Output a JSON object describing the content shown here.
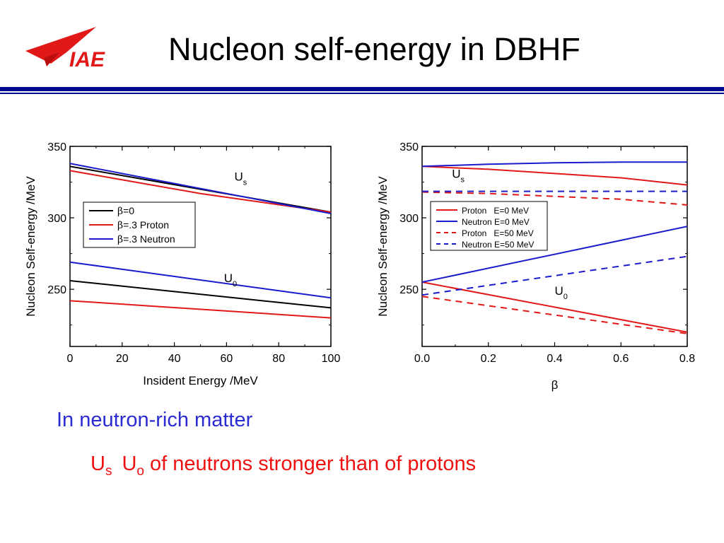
{
  "slide": {
    "title": "Nucleon self-energy in DBHF",
    "logo_text": "IAE",
    "note_heading": "In neutron-rich matter",
    "note_u": "U",
    "note_u_sub": "s",
    "note_uo": "U",
    "note_uo_sub": "o",
    "note_rest": " of  neutrons stronger than of protons",
    "colors": {
      "title_rule": "#000a8c",
      "heading": "#2b2bd0",
      "emphasis": "#ee1111",
      "logo": "#e11818"
    }
  },
  "chart_data": [
    {
      "type": "line",
      "xlabel": "Insident Energy /MeV",
      "ylabel": "Nucleon Self-energy /MeV",
      "xlim": [
        0,
        100
      ],
      "ylim": [
        210,
        350
      ],
      "xticks": [
        "0",
        "20",
        "40",
        "60",
        "80",
        "100"
      ],
      "yticks": [
        "250",
        "300",
        "350"
      ],
      "legend": {
        "placement": "middle-left",
        "entries": [
          "β=0",
          "β=.3 Proton",
          "β=.3 Neutron"
        ]
      },
      "annotations": [
        {
          "text": "U",
          "sub": "s",
          "x": 63,
          "y": 326
        },
        {
          "text": "U",
          "sub": "0",
          "x": 59,
          "y": 255
        }
      ],
      "series": [
        {
          "name": "β=0",
          "color": "#000000",
          "group": "Us",
          "x": [
            0,
            100
          ],
          "values": [
            336,
            304
          ]
        },
        {
          "name": "β=.3 Proton",
          "color": "#e11818",
          "group": "Us",
          "x": [
            0,
            50,
            100
          ],
          "values": [
            333,
            317,
            304
          ]
        },
        {
          "name": "β=.3 Neutron",
          "color": "#1b1bcc",
          "group": "Us",
          "x": [
            0,
            100
          ],
          "values": [
            338,
            303
          ]
        },
        {
          "name": "β=0",
          "color": "#000000",
          "group": "U0",
          "x": [
            0,
            100
          ],
          "values": [
            256,
            237
          ]
        },
        {
          "name": "β=.3 Proton",
          "color": "#e11818",
          "group": "U0",
          "x": [
            0,
            100
          ],
          "values": [
            242,
            230
          ]
        },
        {
          "name": "β=.3 Neutron",
          "color": "#1b1bcc",
          "group": "U0",
          "x": [
            0,
            100
          ],
          "values": [
            269,
            244
          ]
        }
      ]
    },
    {
      "type": "line",
      "xlabel": "β",
      "ylabel": "Nucleon Self-energy /MeV",
      "xlim": [
        0,
        0.8
      ],
      "ylim": [
        210,
        350
      ],
      "xticks": [
        "0.0",
        "0.2",
        "0.4",
        "0.6",
        "0.8"
      ],
      "yticks": [
        "250",
        "300",
        "350"
      ],
      "legend": {
        "placement": "middle-left",
        "entries": [
          "Proton   E=0 MeV",
          "Neutron E=0 MeV",
          "Proton   E=50 MeV",
          "Neutron E=50 MeV"
        ]
      },
      "annotations": [
        {
          "text": "U",
          "sub": "s",
          "x": 0.09,
          "y": 328
        },
        {
          "text": "U",
          "sub": "0",
          "x": 0.4,
          "y": 246
        }
      ],
      "series": [
        {
          "name": "Proton   E=0 MeV",
          "color": "#e11818",
          "dash": false,
          "group": "Us",
          "x": [
            0,
            0.2,
            0.4,
            0.6,
            0.8
          ],
          "values": [
            336,
            334,
            331,
            328,
            323
          ]
        },
        {
          "name": "Neutron E=0 MeV",
          "color": "#1b1bcc",
          "dash": false,
          "group": "Us",
          "x": [
            0,
            0.2,
            0.4,
            0.6,
            0.8
          ],
          "values": [
            336,
            337.5,
            338.5,
            339,
            339
          ]
        },
        {
          "name": "Proton   E=50 MeV",
          "color": "#e11818",
          "dash": true,
          "group": "Us",
          "x": [
            0,
            0.2,
            0.4,
            0.6,
            0.8
          ],
          "values": [
            318,
            317,
            315,
            313,
            309
          ]
        },
        {
          "name": "Neutron E=50 MeV",
          "color": "#1b1bcc",
          "dash": true,
          "group": "Us",
          "x": [
            0,
            0.8
          ],
          "values": [
            318.5,
            318.5
          ]
        },
        {
          "name": "Proton   E=0 MeV",
          "color": "#e11818",
          "dash": false,
          "group": "U0",
          "x": [
            0,
            0.8
          ],
          "values": [
            255,
            220
          ]
        },
        {
          "name": "Neutron E=0 MeV",
          "color": "#1b1bcc",
          "dash": false,
          "group": "U0",
          "x": [
            0,
            0.8
          ],
          "values": [
            255,
            294
          ]
        },
        {
          "name": "Proton   E=50 MeV",
          "color": "#e11818",
          "dash": true,
          "group": "U0",
          "x": [
            0,
            0.8
          ],
          "values": [
            245,
            219
          ]
        },
        {
          "name": "Neutron E=50 MeV",
          "color": "#1b1bcc",
          "dash": true,
          "group": "U0",
          "x": [
            0,
            0.8
          ],
          "values": [
            246,
            273
          ]
        }
      ]
    }
  ]
}
